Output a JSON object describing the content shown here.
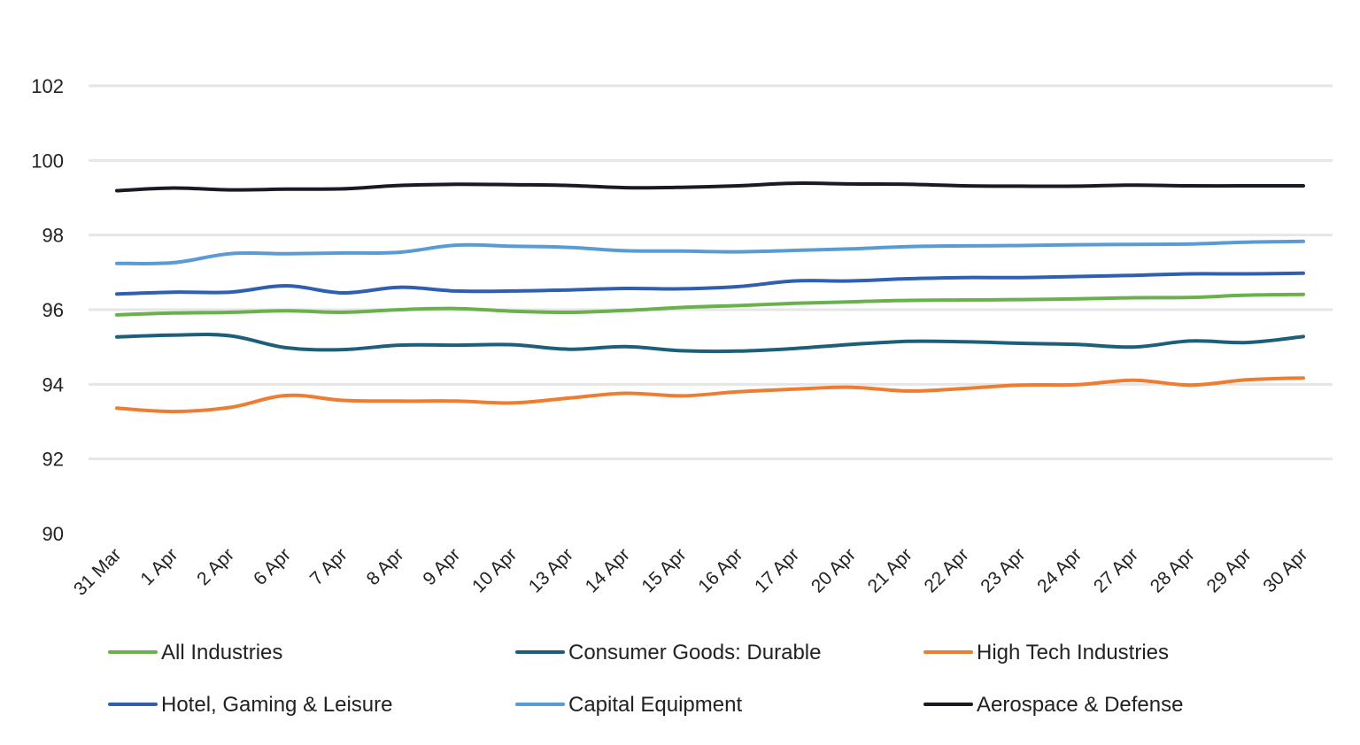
{
  "chart_data": {
    "type": "line",
    "title": "",
    "xlabel": "",
    "ylabel": "",
    "ylim": [
      90,
      102
    ],
    "yticks": [
      90,
      92,
      94,
      96,
      98,
      100,
      102
    ],
    "grid": "horizontal",
    "legend_position": "bottom",
    "categories": [
      "31 Mar",
      "1 Apr",
      "2 Apr",
      "6 Apr",
      "7 Apr",
      "8 Apr",
      "9 Apr",
      "10 Apr",
      "13 Apr",
      "14 Apr",
      "15 Apr",
      "16 Apr",
      "17 Apr",
      "20 Apr",
      "21 Apr",
      "22 Apr",
      "23 Apr",
      "24 Apr",
      "27 Apr",
      "28 Apr",
      "29 Apr",
      "30 Apr"
    ],
    "series": [
      {
        "name": "All Industries",
        "color": "#6ab04c",
        "values": [
          95.86,
          95.91,
          95.93,
          95.97,
          95.93,
          96.0,
          96.03,
          95.96,
          95.93,
          95.98,
          96.06,
          96.11,
          96.17,
          96.21,
          96.25,
          96.26,
          96.27,
          96.29,
          96.32,
          96.33,
          96.39,
          96.41
        ]
      },
      {
        "name": "Consumer Goods: Durable",
        "color": "#1c5f7a",
        "values": [
          95.27,
          95.32,
          95.3,
          94.98,
          94.93,
          95.05,
          95.05,
          95.06,
          94.94,
          95.01,
          94.9,
          94.89,
          94.96,
          95.07,
          95.15,
          95.14,
          95.1,
          95.07,
          95.0,
          95.16,
          95.12,
          95.28
        ]
      },
      {
        "name": "High Tech Industries",
        "color": "#ee7d31",
        "values": [
          93.36,
          93.27,
          93.38,
          93.7,
          93.57,
          93.55,
          93.55,
          93.5,
          93.63,
          93.76,
          93.69,
          93.8,
          93.87,
          93.92,
          93.82,
          93.89,
          93.98,
          93.99,
          94.11,
          93.98,
          94.12,
          94.17
        ]
      },
      {
        "name": "Hotel, Gaming & Leisure",
        "color": "#2f5fae",
        "values": [
          96.42,
          96.47,
          96.47,
          96.64,
          96.45,
          96.6,
          96.5,
          96.5,
          96.53,
          96.57,
          96.56,
          96.62,
          96.77,
          96.77,
          96.83,
          96.86,
          96.86,
          96.89,
          96.92,
          96.96,
          96.96,
          96.98
        ]
      },
      {
        "name": "Capital Equipment",
        "color": "#5b9bd5",
        "values": [
          97.24,
          97.26,
          97.5,
          97.5,
          97.52,
          97.54,
          97.73,
          97.7,
          97.67,
          97.58,
          97.57,
          97.55,
          97.59,
          97.63,
          97.69,
          97.71,
          97.72,
          97.74,
          97.75,
          97.76,
          97.81,
          97.83
        ]
      },
      {
        "name": "Aerospace & Defense",
        "color": "#1a1a24",
        "values": [
          99.19,
          99.26,
          99.21,
          99.23,
          99.24,
          99.33,
          99.36,
          99.35,
          99.33,
          99.27,
          99.28,
          99.32,
          99.39,
          99.37,
          99.36,
          99.32,
          99.31,
          99.31,
          99.34,
          99.32,
          99.32,
          99.32
        ]
      }
    ]
  }
}
